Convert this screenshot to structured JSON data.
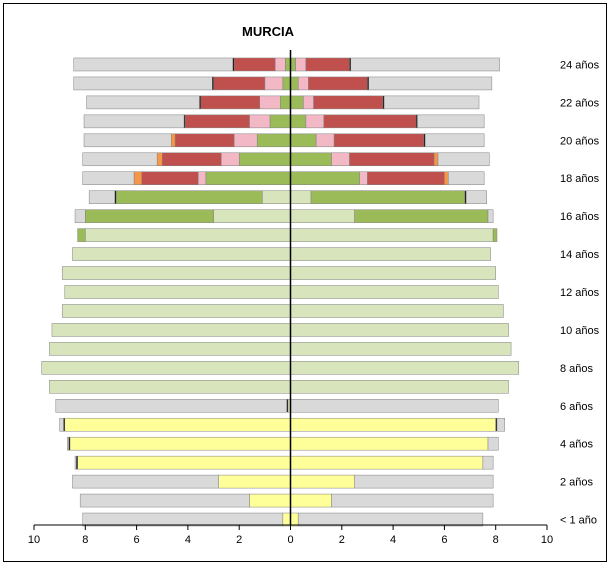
{
  "chart_data": {
    "type": "bar",
    "orientation": "horizontal",
    "layout": "population-pyramid",
    "title": "MURCIA",
    "xlim": [
      -10,
      10
    ],
    "x_ticks": [
      {
        "value": -10,
        "label": "10"
      },
      {
        "value": -8,
        "label": "8"
      },
      {
        "value": -6,
        "label": "6"
      },
      {
        "value": -4,
        "label": "4"
      },
      {
        "value": -2,
        "label": "2"
      },
      {
        "value": 0,
        "label": "0"
      },
      {
        "value": 2,
        "label": "2"
      },
      {
        "value": 4,
        "label": "4"
      },
      {
        "value": 6,
        "label": "6"
      },
      {
        "value": 8,
        "label": "8"
      },
      {
        "value": 10,
        "label": "10"
      }
    ],
    "y_labels": [
      "< 1 año",
      "2 años",
      "4 años",
      "6 años",
      "8 años",
      "10 años",
      "12 años",
      "14 años",
      "16 años",
      "18 años",
      "20 años",
      "22 años",
      "24 años"
    ],
    "label_every": 2,
    "grid": false,
    "legend": "none",
    "colors": {
      "gray": "#d9d9d9",
      "yellow": "#ffff99",
      "lightgreen": "#d8e4bc",
      "green": "#9bbb59",
      "orange": "#f79646",
      "pink": "#f2b8c6",
      "red": "#c0504d",
      "black": "#000000"
    },
    "stack_order_from_center": [
      "lightgreen",
      "yellow",
      "green",
      "pink",
      "red",
      "orange",
      "black",
      "gray"
    ],
    "ages": [
      {
        "left": {
          "yellow": 0.3,
          "gray": 7.8
        },
        "right": {
          "yellow": 0.3,
          "gray": 7.2
        }
      },
      {
        "left": {
          "yellow": 1.6,
          "gray": 6.6
        },
        "right": {
          "yellow": 1.6,
          "gray": 6.3
        }
      },
      {
        "left": {
          "yellow": 2.8,
          "gray": 5.7
        },
        "right": {
          "yellow": 2.5,
          "gray": 5.4
        }
      },
      {
        "left": {
          "yellow": 8.3,
          "black": 0.05,
          "gray": 0.05
        },
        "right": {
          "yellow": 7.5,
          "gray": 0.4
        }
      },
      {
        "left": {
          "yellow": 8.6,
          "black": 0.05,
          "gray": 0.05
        },
        "right": {
          "yellow": 7.7,
          "gray": 0.4
        }
      },
      {
        "left": {
          "yellow": 8.8,
          "black": 0.05,
          "gray": 0.15
        },
        "right": {
          "yellow": 8.0,
          "black": 0.05,
          "gray": 0.3
        }
      },
      {
        "left": {
          "lightgreen": 0.1,
          "black": 0.05,
          "gray": 9.0
        },
        "right": {
          "gray": 8.1
        }
      },
      {
        "left": {
          "lightgreen": 9.4
        },
        "right": {
          "lightgreen": 8.5
        }
      },
      {
        "left": {
          "lightgreen": 9.7
        },
        "right": {
          "lightgreen": 8.9
        }
      },
      {
        "left": {
          "lightgreen": 9.4
        },
        "right": {
          "lightgreen": 8.6
        }
      },
      {
        "left": {
          "lightgreen": 9.3
        },
        "right": {
          "lightgreen": 8.5
        }
      },
      {
        "left": {
          "lightgreen": 8.9
        },
        "right": {
          "lightgreen": 8.3
        }
      },
      {
        "left": {
          "lightgreen": 8.8
        },
        "right": {
          "lightgreen": 8.1
        }
      },
      {
        "left": {
          "lightgreen": 8.9
        },
        "right": {
          "lightgreen": 8.0
        }
      },
      {
        "left": {
          "lightgreen": 8.5
        },
        "right": {
          "lightgreen": 7.8
        }
      },
      {
        "left": {
          "lightgreen": 8.0,
          "green": 0.3
        },
        "right": {
          "lightgreen": 7.9,
          "green": 0.15
        }
      },
      {
        "left": {
          "lightgreen": 3.0,
          "green": 5.0,
          "gray": 0.4
        },
        "right": {
          "lightgreen": 2.5,
          "green": 5.2,
          "gray": 0.2
        }
      },
      {
        "left": {
          "lightgreen": 1.1,
          "green": 5.7,
          "black": 0.05,
          "gray": 1.0
        },
        "right": {
          "lightgreen": 0.8,
          "green": 6.0,
          "black": 0.05,
          "gray": 0.8
        }
      },
      {
        "left": {
          "green": 3.3,
          "pink": 0.3,
          "red": 2.2,
          "orange": 0.3,
          "gray": 2.0
        },
        "right": {
          "green": 2.7,
          "pink": 0.3,
          "red": 3.0,
          "orange": 0.15,
          "gray": 1.4
        }
      },
      {
        "left": {
          "green": 2.0,
          "pink": 0.7,
          "red": 2.3,
          "orange": 0.2,
          "gray": 2.9
        },
        "right": {
          "green": 1.6,
          "pink": 0.7,
          "red": 3.3,
          "orange": 0.15,
          "gray": 2.0
        }
      },
      {
        "left": {
          "green": 1.3,
          "pink": 0.9,
          "red": 2.3,
          "orange": 0.15,
          "gray": 3.4
        },
        "right": {
          "green": 1.0,
          "pink": 0.7,
          "red": 3.5,
          "black": 0.05,
          "gray": 2.3
        }
      },
      {
        "left": {
          "green": 0.8,
          "pink": 0.8,
          "red": 2.5,
          "black": 0.05,
          "gray": 3.9
        },
        "right": {
          "green": 0.6,
          "pink": 0.7,
          "red": 3.6,
          "black": 0.05,
          "gray": 2.6
        }
      },
      {
        "left": {
          "green": 0.4,
          "pink": 0.8,
          "red": 2.3,
          "black": 0.05,
          "gray": 4.4
        },
        "right": {
          "green": 0.5,
          "pink": 0.4,
          "red": 2.7,
          "black": 0.05,
          "gray": 3.7
        }
      },
      {
        "left": {
          "green": 0.3,
          "pink": 0.7,
          "red": 2.0,
          "black": 0.05,
          "gray": 5.4
        },
        "right": {
          "green": 0.3,
          "pink": 0.4,
          "red": 2.3,
          "black": 0.05,
          "gray": 4.8
        }
      },
      {
        "left": {
          "green": 0.2,
          "pink": 0.4,
          "red": 1.6,
          "black": 0.05,
          "gray": 6.2
        },
        "right": {
          "green": 0.2,
          "pink": 0.4,
          "red": 1.7,
          "black": 0.05,
          "gray": 5.8
        }
      }
    ]
  }
}
